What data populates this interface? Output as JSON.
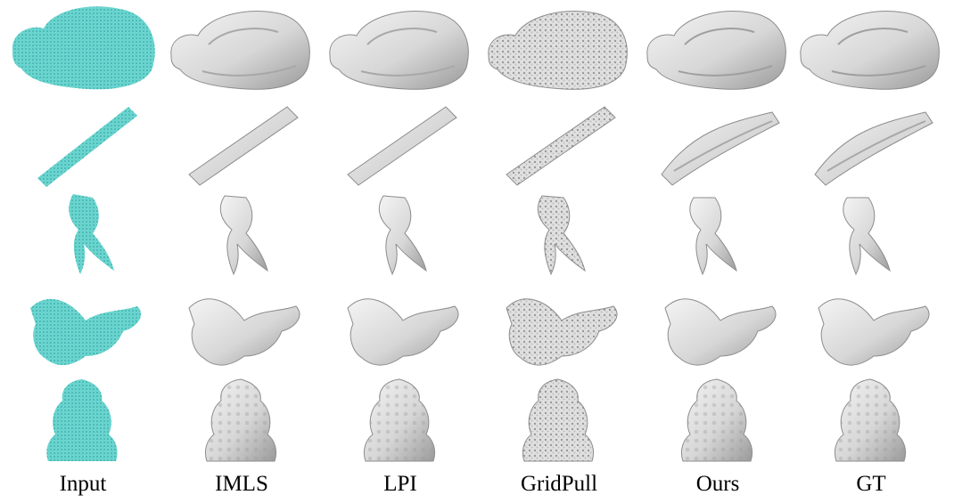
{
  "columns": [
    {
      "id": "input",
      "label": "Input"
    },
    {
      "id": "imls",
      "label": "IMLS"
    },
    {
      "id": "lpi",
      "label": "LPI"
    },
    {
      "id": "gridpull",
      "label": "GridPull"
    },
    {
      "id": "ours",
      "label": "Ours"
    },
    {
      "id": "gt",
      "label": "GT"
    }
  ],
  "rows": [
    {
      "id": "row-1"
    },
    {
      "id": "row-2"
    },
    {
      "id": "row-3"
    },
    {
      "id": "row-4"
    },
    {
      "id": "row-5"
    }
  ],
  "colors": {
    "point_cloud": "#2bbfb8",
    "mesh": "#d7d7d7",
    "mesh_shadow": "#9a9a9a",
    "mesh_highlight": "#f4f4f4"
  }
}
